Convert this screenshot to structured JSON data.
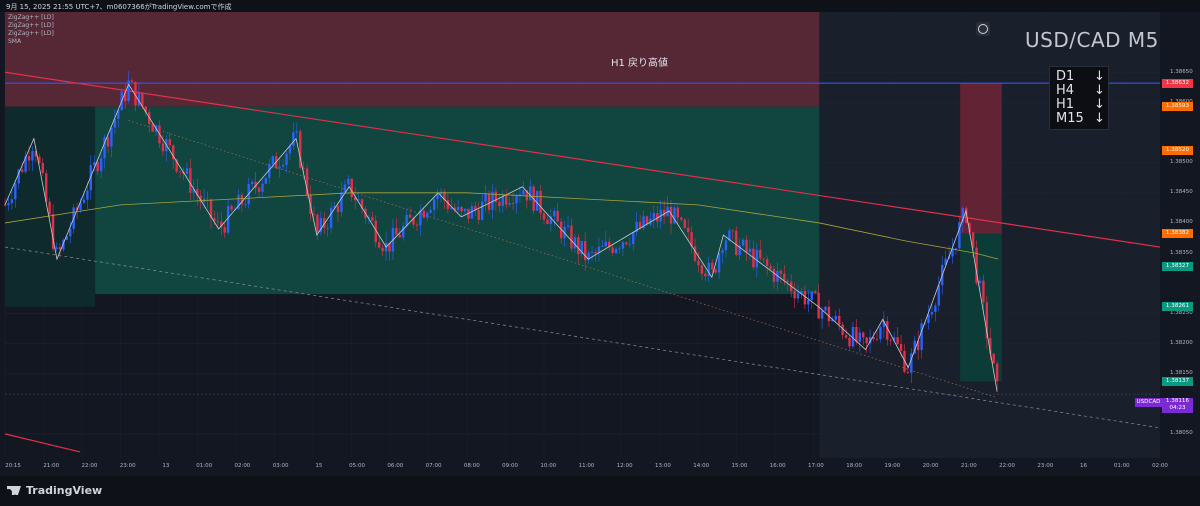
{
  "header": {
    "date_line": "9月 15, 2025 21:55 UTC+7、m0607366がTradingView.comで作成",
    "indicators": [
      "ZigZag++ [LD]",
      "ZigZag++ [LD]",
      "ZigZag++ [LD]",
      "SMA"
    ]
  },
  "symbol_title": "USD/CAD M5",
  "timeframes": [
    {
      "label": "D1",
      "arrow": "↓"
    },
    {
      "label": "H4",
      "arrow": "↓"
    },
    {
      "label": "H1",
      "arrow": "↓"
    },
    {
      "label": "M15",
      "arrow": "↓"
    }
  ],
  "annotation_label": "H1 戻り高値",
  "brand": "TradingView",
  "colors": {
    "background": "#131722",
    "bull": "#2962ff",
    "bear": "#e0304a",
    "zone_red": "#7a2a3a",
    "zone_green": "#124a44",
    "sma": "#a8a33a",
    "trendline": "#e0304a",
    "h1_line": "#3d5afe"
  },
  "chart_data": {
    "type": "candlestick",
    "symbol": "USDCAD",
    "timeframe": "M5",
    "ylim": [
      1.3801,
      1.3875
    ],
    "y_ticks": [
      1.3805,
      1.3815,
      1.382,
      1.3825,
      1.3835,
      1.384,
      1.3845,
      1.385,
      1.386,
      1.3865
    ],
    "y_tick_labels": [
      "1.38050",
      "1.38150",
      "1.38200",
      "1.38250",
      "1.38350",
      "1.38400",
      "1.38450",
      "1.38500",
      "1.38600",
      "1.38650"
    ],
    "x_tick_labels": [
      "20:15",
      "21:00",
      "22:00",
      "23:00",
      "13",
      "01:00",
      "02:00",
      "03:00",
      "15",
      "05:00",
      "06:00",
      "07:00",
      "08:00",
      "09:00",
      "10:00",
      "11:00",
      "12:00",
      "13:00",
      "14:00",
      "15:00",
      "16:00",
      "17:00",
      "18:00",
      "19:00",
      "20:00",
      "21:00",
      "22:00",
      "23:00",
      "16",
      "01:00",
      "02:00"
    ],
    "price_tags": [
      {
        "label": "1.38632",
        "value": 1.38632,
        "color": "#f23645"
      },
      {
        "label": "1.38593",
        "value": 1.38593,
        "color": "#ff6d00"
      },
      {
        "label": "1.38520",
        "value": 1.3852,
        "color": "#ff6d00"
      },
      {
        "label": "1.38382",
        "value": 1.38382,
        "color": "#ff6d00"
      },
      {
        "label": "1.38327",
        "value": 1.38327,
        "color": "#089981"
      },
      {
        "label": "1.38261",
        "value": 1.38261,
        "color": "#089981"
      },
      {
        "label": "1.38137",
        "value": 1.38137,
        "color": "#089981"
      }
    ],
    "last_price": {
      "symbol_label": "USDCAD",
      "label": "1.38116",
      "value": 1.38116,
      "countdown": "04:23"
    },
    "h1_level": 1.38632,
    "zones": [
      {
        "kind": "resistance",
        "x_from": 0,
        "x_to": 0.705,
        "y_top": 1.3875,
        "y_bottom": 1.38593
      },
      {
        "kind": "support",
        "x_from": 0.078,
        "x_to": 0.705,
        "y_top": 1.38593,
        "y_bottom": 1.38282
      },
      {
        "kind": "support_faint",
        "x_from": 0,
        "x_to": 0.078,
        "y_top": 1.38593,
        "y_bottom": 1.38261
      },
      {
        "kind": "short_stop",
        "x_from": 0.827,
        "x_to": 0.863,
        "y_top": 1.38632,
        "y_bottom": 1.38382
      },
      {
        "kind": "short_target",
        "x_from": 0.827,
        "x_to": 0.863,
        "y_top": 1.38382,
        "y_bottom": 1.38137
      }
    ],
    "zigzag": [
      [
        0,
        1.3843
      ],
      [
        0.025,
        1.3854
      ],
      [
        0.045,
        1.3834
      ],
      [
        0.107,
        1.3863
      ],
      [
        0.185,
        1.3839
      ],
      [
        0.252,
        1.3854
      ],
      [
        0.27,
        1.3838
      ],
      [
        0.298,
        1.3846
      ],
      [
        0.33,
        1.3836
      ],
      [
        0.375,
        1.3845
      ],
      [
        0.395,
        1.3841
      ],
      [
        0.448,
        1.3846
      ],
      [
        0.505,
        1.3834
      ],
      [
        0.575,
        1.3842
      ],
      [
        0.612,
        1.3831
      ],
      [
        0.622,
        1.3838
      ],
      [
        0.705,
        1.3826
      ],
      [
        0.745,
        1.3819
      ],
      [
        0.76,
        1.3824
      ],
      [
        0.782,
        1.3816
      ],
      [
        0.832,
        1.3842
      ],
      [
        0.859,
        1.3812
      ]
    ],
    "candles_description": "approx. 290 five-minute candles from 20:15 through ~22:00 next day; high 1.3863 near 23:00, low 1.3811 at the end",
    "series": [
      {
        "name": "SMA",
        "values_path": [
          [
            0,
            1.384
          ],
          [
            0.1,
            1.3843
          ],
          [
            0.2,
            1.3844
          ],
          [
            0.3,
            1.3845
          ],
          [
            0.4,
            1.3845
          ],
          [
            0.5,
            1.3844
          ],
          [
            0.6,
            1.3843
          ],
          [
            0.705,
            1.384
          ],
          [
            0.78,
            1.3837
          ],
          [
            0.84,
            1.3835
          ],
          [
            0.86,
            1.3834
          ]
        ]
      }
    ],
    "trendlines": [
      {
        "style": "solid",
        "from": [
          0,
          1.3865
        ],
        "to": [
          1,
          1.3836
        ]
      },
      {
        "style": "dashed",
        "from": [
          0,
          1.3836
        ],
        "to": [
          1,
          1.3806
        ]
      },
      {
        "style": "dotted",
        "from": [
          0.107,
          1.3857
        ],
        "to": [
          0.859,
          1.3811
        ]
      }
    ]
  }
}
